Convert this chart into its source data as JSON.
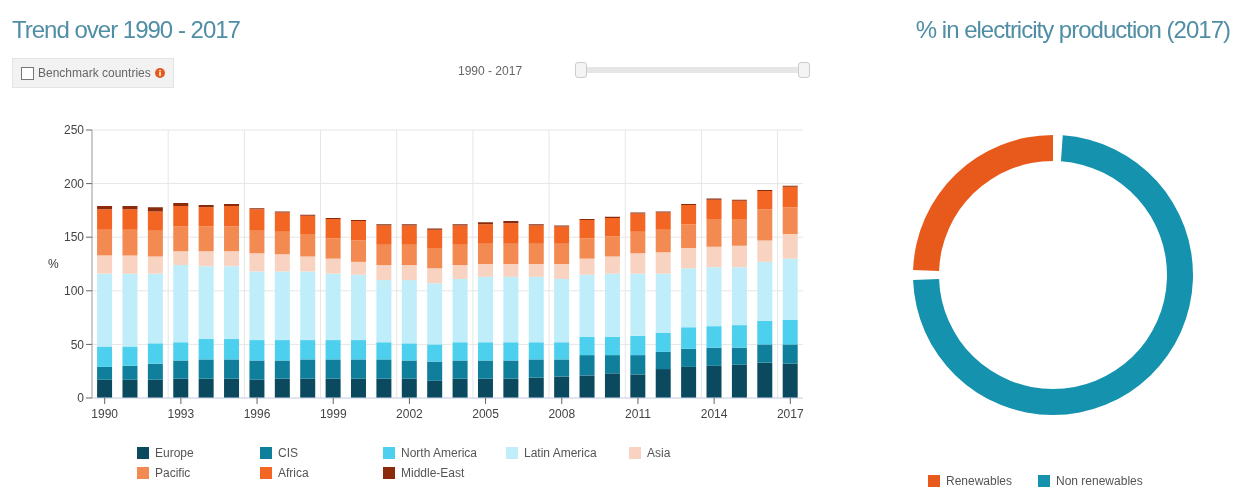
{
  "chart_data": [
    {
      "type": "bar",
      "title": "Trend over 1990 - 2017",
      "ylabel": "%",
      "annotations": [
        "Benchmark countries",
        "1990 - 2017"
      ],
      "categories": [
        "1990",
        null,
        null,
        "1993",
        null,
        null,
        "1996",
        null,
        null,
        "1999",
        null,
        null,
        "2002",
        null,
        null,
        "2005",
        null,
        null,
        "2008",
        null,
        null,
        "2011",
        null,
        null,
        "2014",
        null,
        null,
        "2017"
      ],
      "series": [
        {
          "name": "Europe",
          "color": "#0b4a5e",
          "values": [
            17,
            17,
            17,
            18,
            18,
            18,
            17,
            18,
            18,
            18,
            18,
            18,
            18,
            16,
            18,
            18,
            18,
            19,
            20,
            21,
            23,
            22,
            27,
            29,
            30,
            31,
            33,
            32
          ]
        },
        {
          "name": "CIS",
          "color": "#0f7f9b",
          "values": [
            12,
            13,
            15,
            17,
            18,
            18,
            18,
            17,
            18,
            18,
            18,
            18,
            17,
            18,
            17,
            17,
            17,
            17,
            16,
            19,
            17,
            18,
            16,
            17,
            17,
            16,
            17,
            18
          ]
        },
        {
          "name": "North America",
          "color": "#4dcfee",
          "values": [
            19,
            18,
            19,
            17,
            19,
            19,
            19,
            19,
            18,
            18,
            18,
            16,
            16,
            16,
            17,
            17,
            17,
            16,
            16,
            17,
            17,
            18,
            18,
            20,
            20,
            21,
            22,
            23
          ]
        },
        {
          "name": "Latin America",
          "color": "#bfeefa",
          "values": [
            68,
            68,
            65,
            72,
            68,
            68,
            64,
            64,
            64,
            62,
            61,
            58,
            59,
            57,
            59,
            61,
            61,
            61,
            59,
            58,
            59,
            58,
            55,
            55,
            55,
            54,
            55,
            57
          ]
        },
        {
          "name": "Asia",
          "color": "#f8d3c2",
          "values": [
            17,
            17,
            16,
            13,
            14,
            14,
            17,
            16,
            14,
            14,
            12,
            14,
            14,
            14,
            13,
            12,
            12,
            12,
            14,
            15,
            16,
            19,
            20,
            19,
            19,
            20,
            20,
            23
          ]
        },
        {
          "name": "Pacific",
          "color": "#f28a52",
          "values": [
            24,
            24,
            24,
            23,
            23,
            23,
            21,
            21,
            21,
            19,
            20,
            19,
            19,
            19,
            19,
            19,
            19,
            19,
            19,
            19,
            19,
            20,
            21,
            22,
            26,
            25,
            29,
            25
          ]
        },
        {
          "name": "Africa",
          "color": "#f26522",
          "values": [
            19,
            19,
            18,
            19,
            18,
            19,
            20,
            18,
            17,
            18,
            18,
            18,
            18,
            17,
            18,
            18,
            19,
            17,
            16,
            17,
            17,
            17,
            16,
            18,
            18,
            17,
            17,
            19
          ]
        },
        {
          "name": "Middle-East",
          "color": "#8c2b0b",
          "values": [
            3,
            3,
            4,
            3,
            2,
            2,
            1,
            1,
            1,
            1,
            1,
            1,
            1,
            1,
            1,
            2,
            2,
            1,
            1,
            1,
            1,
            1,
            1,
            1,
            1,
            1,
            1,
            1
          ]
        }
      ],
      "stacked": true,
      "ylim": [
        0,
        250
      ],
      "yticks": [
        0,
        50,
        100,
        150,
        200,
        250
      ],
      "grid": true,
      "legend": "bottom"
    },
    {
      "type": "donut",
      "title": "% in electricity production (2017)",
      "categories": [
        "Renewables",
        "Non renewables"
      ],
      "values": [
        25,
        75
      ],
      "colors": [
        "#e8591c",
        "#1592ae"
      ],
      "legend": "bottom"
    }
  ]
}
